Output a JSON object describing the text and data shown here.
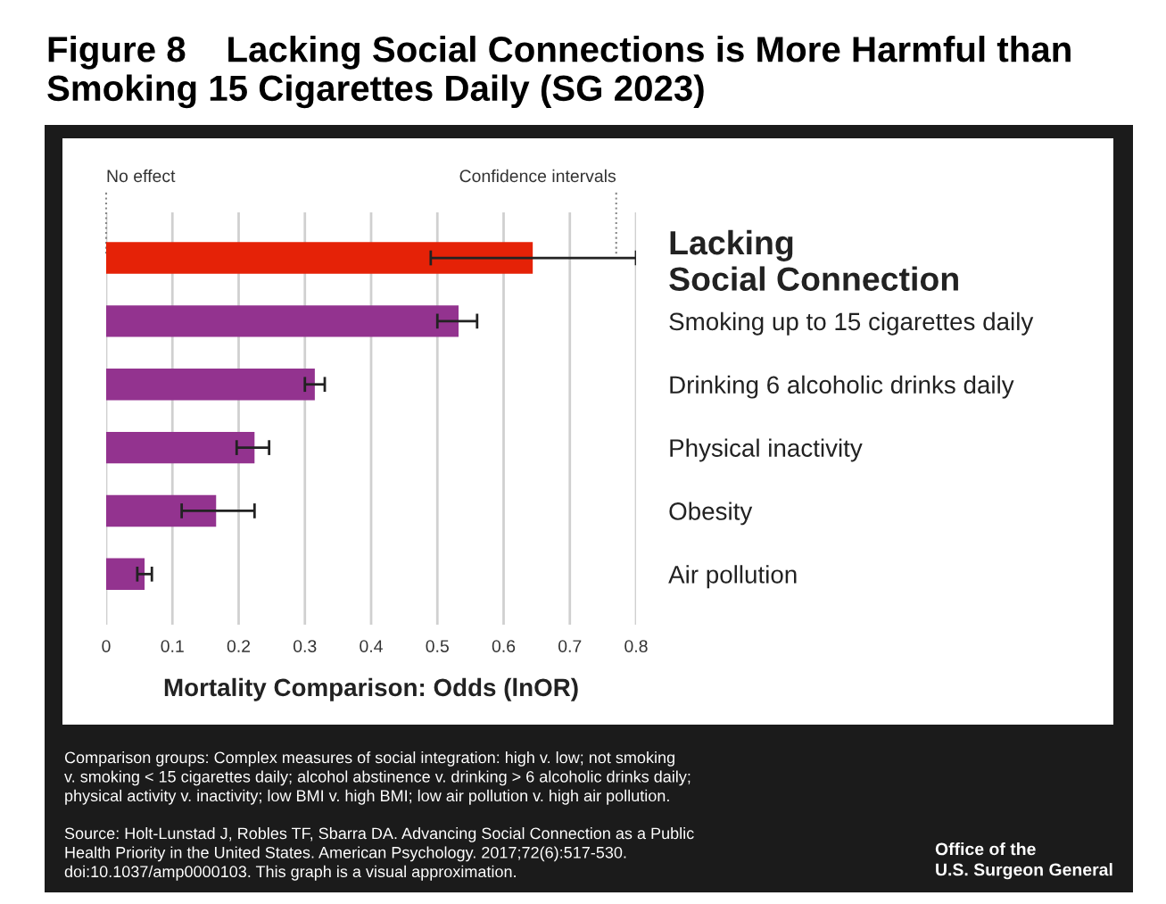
{
  "chart_data": {
    "type": "bar",
    "orientation": "horizontal",
    "title": "Figure 8    Lacking Social Connections is More Harmful than Smoking 15 Cigarettes Daily (SG 2023)",
    "xlabel": "Mortality Comparison: Odds (lnOR)",
    "categories": [
      "Lacking\nSocial Connection",
      "Smoking up to 15 cigarettes daily",
      "Drinking 6 alcoholic drinks daily",
      "Physical inactivity",
      "Obesity",
      "Air pollution"
    ],
    "values": [
      0.644,
      0.532,
      0.315,
      0.224,
      0.166,
      0.058
    ],
    "errors": [
      [
        0.49,
        0.8
      ],
      [
        0.5,
        0.56
      ],
      [
        0.3,
        0.33
      ],
      [
        0.197,
        0.246
      ],
      [
        0.114,
        0.224
      ],
      [
        0.047,
        0.069
      ]
    ],
    "colors": [
      "#e52207",
      "#93338f",
      "#93338f",
      "#93338f",
      "#93338f",
      "#93338f"
    ],
    "xlim": [
      0,
      0.8
    ],
    "xticks": [
      0,
      0.1,
      0.2,
      0.3,
      0.4,
      0.5,
      0.6,
      0.7,
      0.8
    ],
    "grid": "x",
    "ref_lines": [
      {
        "axis": "x",
        "value": 0,
        "label": "No effect",
        "line_style": "dotted"
      },
      {
        "axis": "x",
        "value": 0.77,
        "label": "Confidence intervals",
        "line_style": "dotted"
      }
    ],
    "annotations": [
      "Comparison groups: Complex measures of social integration: high v. low; not smoking\nv. smoking < 15 cigarettes daily; alcohol abstinence v. drinking > 6 alcoholic drinks daily;\nphysical activity v. inactivity; low BMI v. high BMI; low air pollution v. high air pollution.",
      "Source: Holt-Lunstad J, Robles TF, Sbarra DA. Advancing Social Connection as a Public\nHealth Priority in the United States. American Psychology. 2017;72(6):517-530.\ndoi:10.1037/amp0000103. This graph is a visual approximation.",
      "Office of the\nU.S. Surgeon General"
    ]
  }
}
